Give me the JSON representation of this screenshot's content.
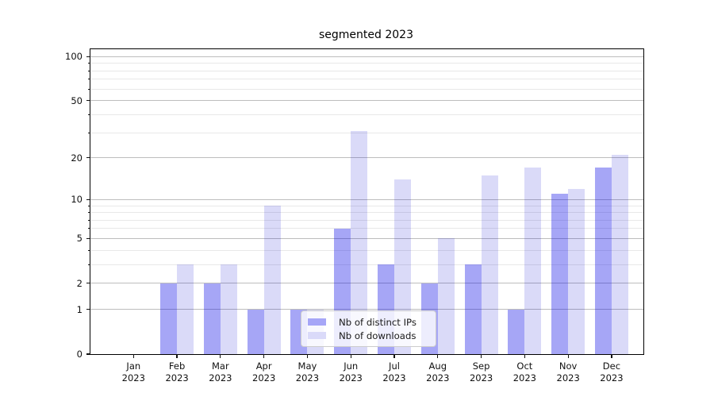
{
  "page": {
    "background": "#ffffff"
  },
  "chart_data": {
    "type": "bar",
    "title": "segmented 2023",
    "categories": [
      "Jan 2023",
      "Feb 2023",
      "Mar 2023",
      "Apr 2023",
      "May 2023",
      "Jun 2023",
      "Jul 2023",
      "Aug 2023",
      "Sep 2023",
      "Oct 2023",
      "Nov 2023",
      "Dec 2023"
    ],
    "series": [
      {
        "name": "Nb of distinct IPs",
        "values": [
          0,
          2,
          2,
          1,
          1,
          6,
          3,
          2,
          3,
          1,
          11,
          17
        ],
        "color": "#a6a6f7",
        "fill": "rgba(0,0,230,0.35)"
      },
      {
        "name": "Nb of downloads",
        "values": [
          0,
          3,
          3,
          9,
          1,
          31,
          14,
          5,
          15,
          17,
          12,
          21
        ],
        "color": "#dadaf9",
        "fill": "rgba(0,0,210,0.145)"
      }
    ],
    "xlabel": "",
    "ylabel": "",
    "y_scale": "log10(1+x)",
    "y_major_ticks": [
      0,
      1,
      2,
      5,
      10,
      20,
      50,
      100
    ],
    "y_minor_ticks": [
      3,
      4,
      6,
      7,
      8,
      9,
      30,
      40,
      60,
      70,
      80,
      90
    ],
    "ylim": [
      0,
      113
    ],
    "grid": "horizontal, major and minor",
    "legend_position": "lower center"
  },
  "colors": {
    "grid_major": "#bdbdbd",
    "grid_minor": "#e8e8e8",
    "spine": "#000000",
    "text": "#111111",
    "legend_border": "#cccccc",
    "legend_bg": "rgba(255,255,255,0.8)"
  }
}
